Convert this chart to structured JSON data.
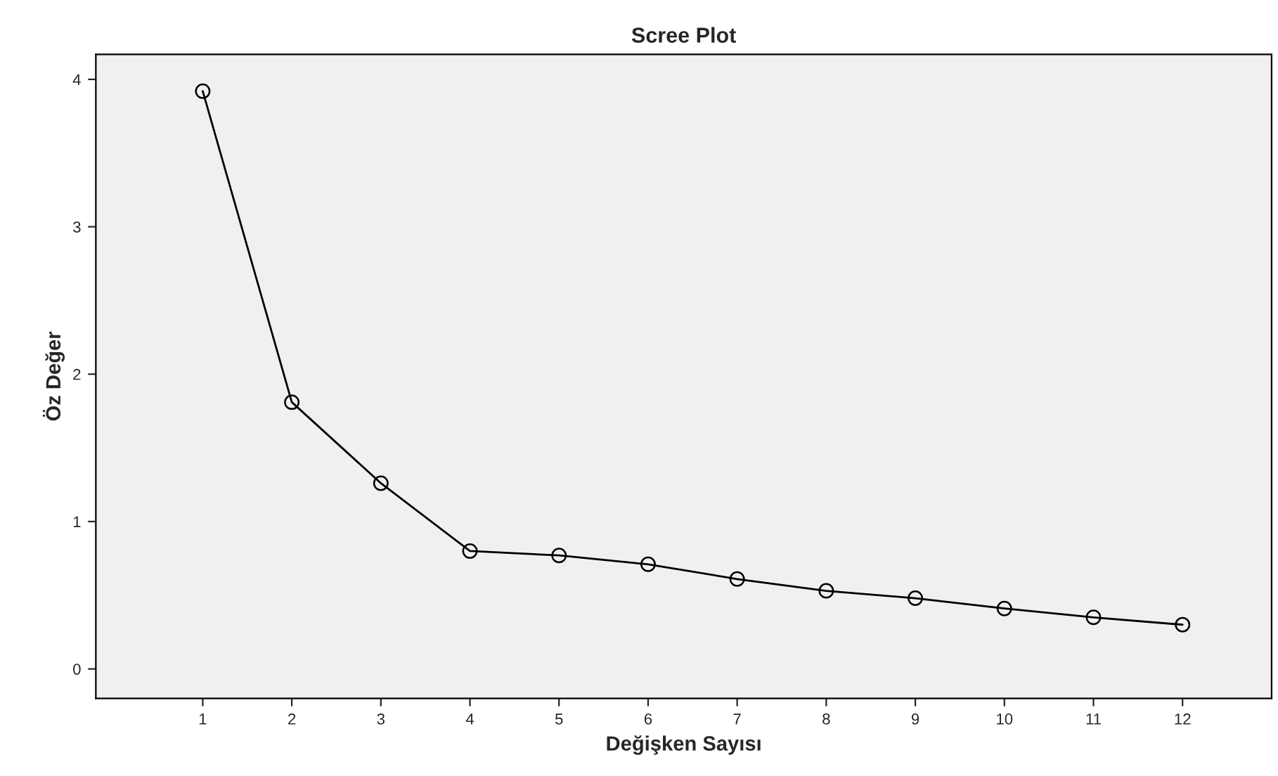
{
  "chart_data": {
    "type": "line",
    "title": "Scree Plot",
    "xlabel": "Değişken Sayısı",
    "ylabel": "Öz Değer",
    "x": [
      1,
      2,
      3,
      4,
      5,
      6,
      7,
      8,
      9,
      10,
      11,
      12
    ],
    "series": [
      {
        "color": "#000000",
        "values": [
          3.92,
          1.81,
          1.26,
          0.8,
          0.77,
          0.71,
          0.61,
          0.53,
          0.48,
          0.41,
          0.35,
          0.3
        ]
      }
    ],
    "xlim": [
      -0.2,
      13
    ],
    "xticks": [
      1,
      2,
      3,
      4,
      5,
      6,
      7,
      8,
      9,
      10,
      11,
      12
    ],
    "ylim": [
      -0.2,
      4.17
    ],
    "yticks": [
      0,
      1,
      2,
      3,
      4
    ],
    "grid": false,
    "legend": false,
    "marker": "circle",
    "line_style": "solid"
  }
}
